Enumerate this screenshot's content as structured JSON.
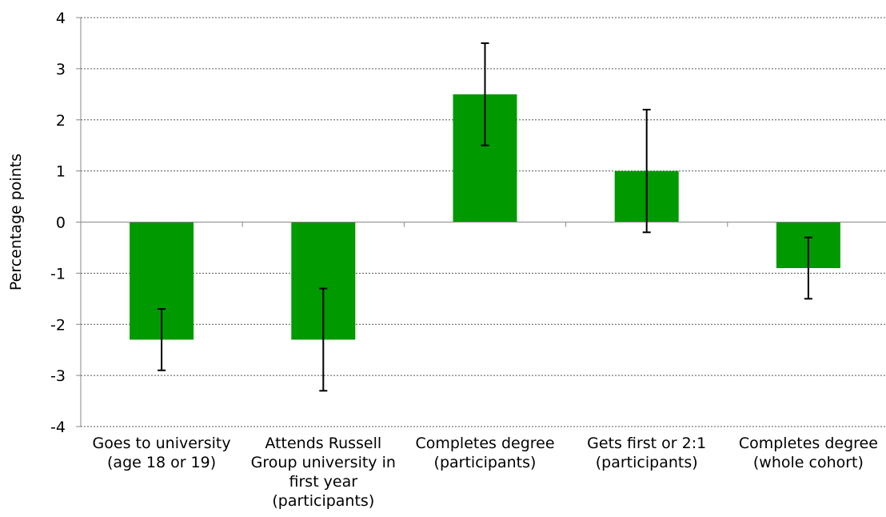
{
  "chart_data": {
    "type": "bar",
    "ylabel": "Percentage points",
    "ylim": [
      -4,
      4
    ],
    "yticks": [
      "4",
      "3",
      "2",
      "1",
      "0",
      "-1",
      "-2",
      "-3",
      "-4"
    ],
    "grid": true,
    "bar_color": "#009900",
    "categories": [
      "Goes to university (age 18 or 19)",
      "Attends Russell Group university in first year (participants)",
      "Completes degree (participants)",
      "Gets first or 2:1 (participants)",
      "Completes degree (whole cohort)"
    ],
    "category_lines": [
      [
        "Goes to university",
        "(age 18 or 19)"
      ],
      [
        "Attends Russell",
        "Group university in",
        "first year",
        "(participants)"
      ],
      [
        "Completes degree",
        "(participants)"
      ],
      [
        "Gets first or 2:1",
        "(participants)"
      ],
      [
        "Completes degree",
        "(whole cohort)"
      ]
    ],
    "values": [
      -2.3,
      -2.3,
      2.5,
      1.0,
      -0.9
    ],
    "error_low": [
      -2.9,
      -3.3,
      1.5,
      -0.2,
      -1.5
    ],
    "error_high": [
      -1.7,
      -1.3,
      3.5,
      2.2,
      -0.3
    ]
  }
}
